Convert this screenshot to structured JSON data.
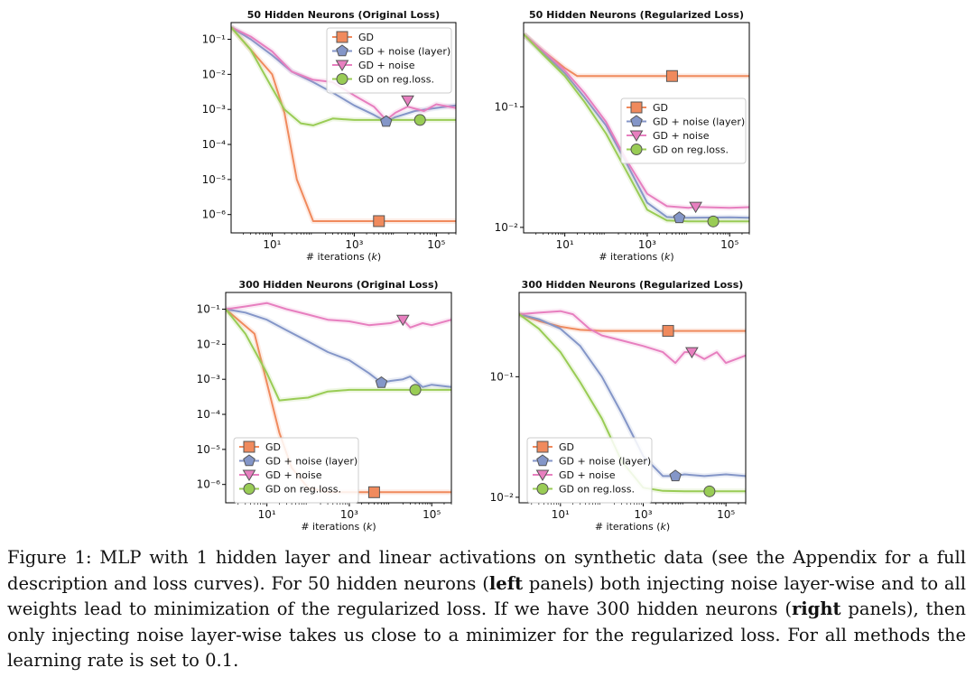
{
  "chart_data": [
    {
      "type": "line",
      "title": "50 Hidden Neurons (Original Loss)",
      "xlabel": "# iterations (k)",
      "ylabel": "",
      "xscale": "log",
      "yscale": "log",
      "xlim": [
        1,
        300000
      ],
      "ylim": [
        3e-07,
        0.3
      ],
      "xticks": [
        "10^1",
        "10^3",
        "10^5"
      ],
      "yticks": [
        "10^-1",
        "10^-2",
        "10^-3",
        "10^-4",
        "10^-5",
        "10^-6"
      ],
      "legend_position": "upper-right",
      "series": [
        {
          "name": "GD",
          "color": "#f08a5d",
          "marker": "square",
          "marker_at": [
            4000,
            6.5e-07
          ],
          "x": [
            1,
            10,
            20,
            40,
            100,
            300,
            1000,
            10000,
            100000,
            300000
          ],
          "y": [
            0.22,
            0.01,
            0.0008,
            1e-05,
            6.5e-07,
            6.5e-07,
            6.5e-07,
            6.5e-07,
            6.5e-07,
            6.5e-07
          ]
        },
        {
          "name": "GD + noise (layer)",
          "color": "#8496c8",
          "marker": "pentagon",
          "marker_at": [
            6000,
            0.00045
          ],
          "x": [
            1,
            3,
            10,
            30,
            100,
            300,
            1000,
            3000,
            6000,
            10000,
            30000,
            100000,
            300000
          ],
          "y": [
            0.22,
            0.1,
            0.035,
            0.012,
            0.006,
            0.003,
            0.0013,
            0.0007,
            0.00045,
            0.0006,
            0.0009,
            0.0011,
            0.0013
          ]
        },
        {
          "name": "GD + noise",
          "color": "#e77fbf",
          "marker": "triangle-down",
          "marker_at": [
            20000,
            0.0018
          ],
          "x": [
            1,
            3,
            10,
            30,
            100,
            300,
            1000,
            3000,
            6000,
            10000,
            20000,
            50000,
            100000,
            300000
          ],
          "y": [
            0.22,
            0.12,
            0.045,
            0.012,
            0.007,
            0.006,
            0.0025,
            0.0012,
            0.0005,
            0.0008,
            0.0012,
            0.0009,
            0.0014,
            0.0011
          ]
        },
        {
          "name": "GD on reg.loss.",
          "color": "#99cc55",
          "marker": "circle",
          "marker_at": [
            40000,
            0.0005
          ],
          "x": [
            1,
            3,
            10,
            20,
            50,
            100,
            300,
            1000,
            10000,
            100000,
            300000
          ],
          "y": [
            0.22,
            0.05,
            0.004,
            0.001,
            0.0004,
            0.00035,
            0.00055,
            0.0005,
            0.0005,
            0.0005,
            0.0005
          ]
        }
      ]
    },
    {
      "type": "line",
      "title": "50 Hidden Neurons (Regularized Loss)",
      "xlabel": "# iterations (k)",
      "ylabel": "",
      "xscale": "log",
      "yscale": "log",
      "xlim": [
        1,
        300000
      ],
      "ylim": [
        0.009,
        0.5
      ],
      "xticks": [
        "10^1",
        "10^3",
        "10^5"
      ],
      "yticks": [
        "10^-1",
        "10^-2"
      ],
      "legend_position": "center-right",
      "series": [
        {
          "name": "GD",
          "color": "#f08a5d",
          "marker": "square",
          "marker_at": [
            4000,
            0.18
          ],
          "x": [
            1,
            3,
            10,
            20,
            100,
            1000,
            10000,
            300000
          ],
          "y": [
            0.4,
            0.29,
            0.21,
            0.18,
            0.18,
            0.18,
            0.18,
            0.18
          ]
        },
        {
          "name": "GD + noise (layer)",
          "color": "#8496c8",
          "marker": "pentagon",
          "marker_at": [
            6000,
            0.012
          ],
          "x": [
            1,
            3,
            10,
            30,
            100,
            300,
            1000,
            3000,
            6000,
            10000,
            100000,
            300000
          ],
          "y": [
            0.4,
            0.28,
            0.19,
            0.12,
            0.07,
            0.035,
            0.016,
            0.0122,
            0.012,
            0.012,
            0.0121,
            0.012
          ]
        },
        {
          "name": "GD + noise",
          "color": "#e77fbf",
          "marker": "triangle-down",
          "marker_at": [
            15000,
            0.0148
          ],
          "x": [
            1,
            3,
            10,
            30,
            100,
            300,
            1000,
            3000,
            10000,
            15000,
            100000,
            300000
          ],
          "y": [
            0.4,
            0.29,
            0.2,
            0.13,
            0.075,
            0.037,
            0.019,
            0.015,
            0.0145,
            0.0148,
            0.0145,
            0.0147
          ]
        },
        {
          "name": "GD on reg.loss.",
          "color": "#99cc55",
          "marker": "circle",
          "marker_at": [
            40000,
            0.0112
          ],
          "x": [
            1,
            3,
            10,
            30,
            100,
            300,
            1000,
            3000,
            10000,
            100000,
            300000
          ],
          "y": [
            0.4,
            0.27,
            0.18,
            0.11,
            0.06,
            0.03,
            0.014,
            0.0114,
            0.0112,
            0.0112,
            0.0112
          ]
        }
      ]
    },
    {
      "type": "line",
      "title": "300 Hidden Neurons (Original Loss)",
      "xlabel": "# iterations (k)",
      "ylabel": "",
      "xscale": "log",
      "yscale": "log",
      "xlim": [
        1,
        300000
      ],
      "ylim": [
        3e-07,
        0.3
      ],
      "xticks": [
        "10^1",
        "10^3",
        "10^5"
      ],
      "yticks": [
        "10^-1",
        "10^-2",
        "10^-3",
        "10^-4",
        "10^-5",
        "10^-6"
      ],
      "legend_position": "lower-right",
      "series": [
        {
          "name": "GD",
          "color": "#f08a5d",
          "marker": "square",
          "marker_at": [
            4000,
            6e-07
          ],
          "x": [
            1,
            5,
            10,
            20,
            40,
            100,
            300,
            1000,
            10000,
            100000,
            300000
          ],
          "y": [
            0.1,
            0.02,
            0.0008,
            3e-05,
            3e-06,
            8e-07,
            6e-07,
            6e-07,
            6e-07,
            6e-07,
            6e-07
          ]
        },
        {
          "name": "GD + noise (layer)",
          "color": "#8496c8",
          "marker": "pentagon",
          "marker_at": [
            6000,
            0.0008
          ],
          "x": [
            1,
            3,
            10,
            30,
            100,
            300,
            1000,
            3000,
            6000,
            10000,
            20000,
            30000,
            60000,
            100000,
            300000
          ],
          "y": [
            0.1,
            0.08,
            0.05,
            0.025,
            0.012,
            0.006,
            0.0035,
            0.0015,
            0.0008,
            0.0009,
            0.001,
            0.0012,
            0.0006,
            0.0007,
            0.0006
          ]
        },
        {
          "name": "GD + noise",
          "color": "#e77fbf",
          "marker": "triangle-down",
          "marker_at": [
            20000,
            0.05
          ],
          "x": [
            1,
            3,
            10,
            30,
            100,
            300,
            1000,
            3000,
            10000,
            20000,
            30000,
            60000,
            100000,
            300000
          ],
          "y": [
            0.1,
            0.12,
            0.15,
            0.1,
            0.07,
            0.05,
            0.045,
            0.035,
            0.04,
            0.05,
            0.03,
            0.04,
            0.035,
            0.05
          ]
        },
        {
          "name": "GD on reg.loss.",
          "color": "#99cc55",
          "marker": "circle",
          "marker_at": [
            40000,
            0.0005
          ],
          "x": [
            1,
            3,
            10,
            20,
            50,
            100,
            300,
            1000,
            10000,
            100000,
            300000
          ],
          "y": [
            0.1,
            0.02,
            0.0015,
            0.00025,
            0.00028,
            0.0003,
            0.00045,
            0.0005,
            0.0005,
            0.0005,
            0.0005
          ]
        }
      ]
    },
    {
      "type": "line",
      "title": "300 Hidden Neurons (Regularized Loss)",
      "xlabel": "# iterations (k)",
      "ylabel": "",
      "xscale": "log",
      "yscale": "log",
      "xlim": [
        1,
        300000
      ],
      "ylim": [
        0.009,
        0.5
      ],
      "xticks": [
        "10^1",
        "10^3",
        "10^5"
      ],
      "yticks": [
        "10^-1",
        "10^-2"
      ],
      "legend_position": "lower-right",
      "series": [
        {
          "name": "GD",
          "color": "#f08a5d",
          "marker": "square",
          "marker_at": [
            4000,
            0.24
          ],
          "x": [
            1,
            3,
            10,
            30,
            100,
            1000,
            10000,
            300000
          ],
          "y": [
            0.33,
            0.29,
            0.26,
            0.245,
            0.24,
            0.24,
            0.24,
            0.24
          ]
        },
        {
          "name": "GD + noise (layer)",
          "color": "#8496c8",
          "marker": "pentagon",
          "marker_at": [
            6000,
            0.015
          ],
          "x": [
            1,
            3,
            10,
            30,
            100,
            300,
            1000,
            3000,
            6000,
            10000,
            30000,
            100000,
            300000
          ],
          "y": [
            0.33,
            0.3,
            0.25,
            0.18,
            0.1,
            0.05,
            0.022,
            0.015,
            0.015,
            0.0155,
            0.015,
            0.0155,
            0.015
          ]
        },
        {
          "name": "GD + noise",
          "color": "#e77fbf",
          "marker": "triangle-down",
          "marker_at": [
            15000,
            0.16
          ],
          "x": [
            1,
            3,
            10,
            20,
            50,
            100,
            300,
            1000,
            3000,
            6000,
            10000,
            15000,
            30000,
            60000,
            100000,
            300000
          ],
          "y": [
            0.33,
            0.34,
            0.35,
            0.33,
            0.25,
            0.22,
            0.2,
            0.18,
            0.16,
            0.13,
            0.16,
            0.16,
            0.14,
            0.16,
            0.13,
            0.15
          ]
        },
        {
          "name": "GD on reg.loss.",
          "color": "#99cc55",
          "marker": "circle",
          "marker_at": [
            40000,
            0.0112
          ],
          "x": [
            1,
            3,
            10,
            30,
            100,
            300,
            1000,
            3000,
            10000,
            100000,
            300000
          ],
          "y": [
            0.33,
            0.25,
            0.16,
            0.09,
            0.045,
            0.02,
            0.012,
            0.0113,
            0.0112,
            0.0112,
            0.0112
          ]
        }
      ]
    }
  ],
  "caption": {
    "p1": "Figure 1: MLP with 1 hidden layer and linear activations on synthetic data (see the Appendix for a full description and loss curves). For 50 hidden neurons (",
    "b1": "left",
    "p2": " panels) both injecting noise layer-wise and to all weights lead to minimization of the regularized loss. If we have 300 hidden neurons (",
    "b2": "right",
    "p3": " panels), then only injecting noise layer-wise takes us close to a minimizer for the regularized loss. For all methods the learning rate is set to 0.1."
  }
}
